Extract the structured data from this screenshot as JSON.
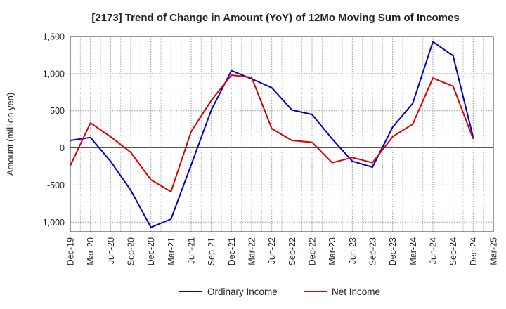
{
  "chart_data": {
    "type": "line",
    "title": "[2173]  Trend of Change in Amount (YoY) of 12Mo Moving Sum of Incomes",
    "ylabel": "Amount (million yen)",
    "xlabel": "",
    "categories": [
      "Dec-19",
      "Mar-20",
      "Jun-20",
      "Sep-20",
      "Dec-20",
      "Mar-21",
      "Jun-21",
      "Sep-21",
      "Dec-21",
      "Mar-22",
      "Jun-22",
      "Sep-22",
      "Dec-22",
      "Mar-23",
      "Jun-23",
      "Sep-23",
      "Dec-23",
      "Mar-24",
      "Jun-24",
      "Sep-24",
      "Dec-24",
      "Mar-25"
    ],
    "yticks": [
      -1000,
      -500,
      0,
      500,
      1000,
      1500
    ],
    "ytick_labels": [
      "-1,000",
      "-500",
      "0",
      "500",
      "1,000",
      "1,500"
    ],
    "ylim": [
      -1130,
      1500
    ],
    "grid": true,
    "legend_position": "bottom",
    "series": [
      {
        "name": "Ordinary Income",
        "color": "#0000cc",
        "values": [
          100,
          140,
          -180,
          -570,
          -1070,
          -960,
          -230,
          510,
          1040,
          930,
          810,
          510,
          450,
          120,
          -180,
          -260,
          280,
          600,
          1430,
          1240,
          140,
          null
        ]
      },
      {
        "name": "Net Income",
        "color": "#dd0000",
        "values": [
          -240,
          335,
          150,
          -60,
          -430,
          -590,
          220,
          640,
          980,
          950,
          260,
          100,
          75,
          -200,
          -130,
          -200,
          150,
          320,
          940,
          830,
          120,
          null
        ]
      }
    ]
  }
}
